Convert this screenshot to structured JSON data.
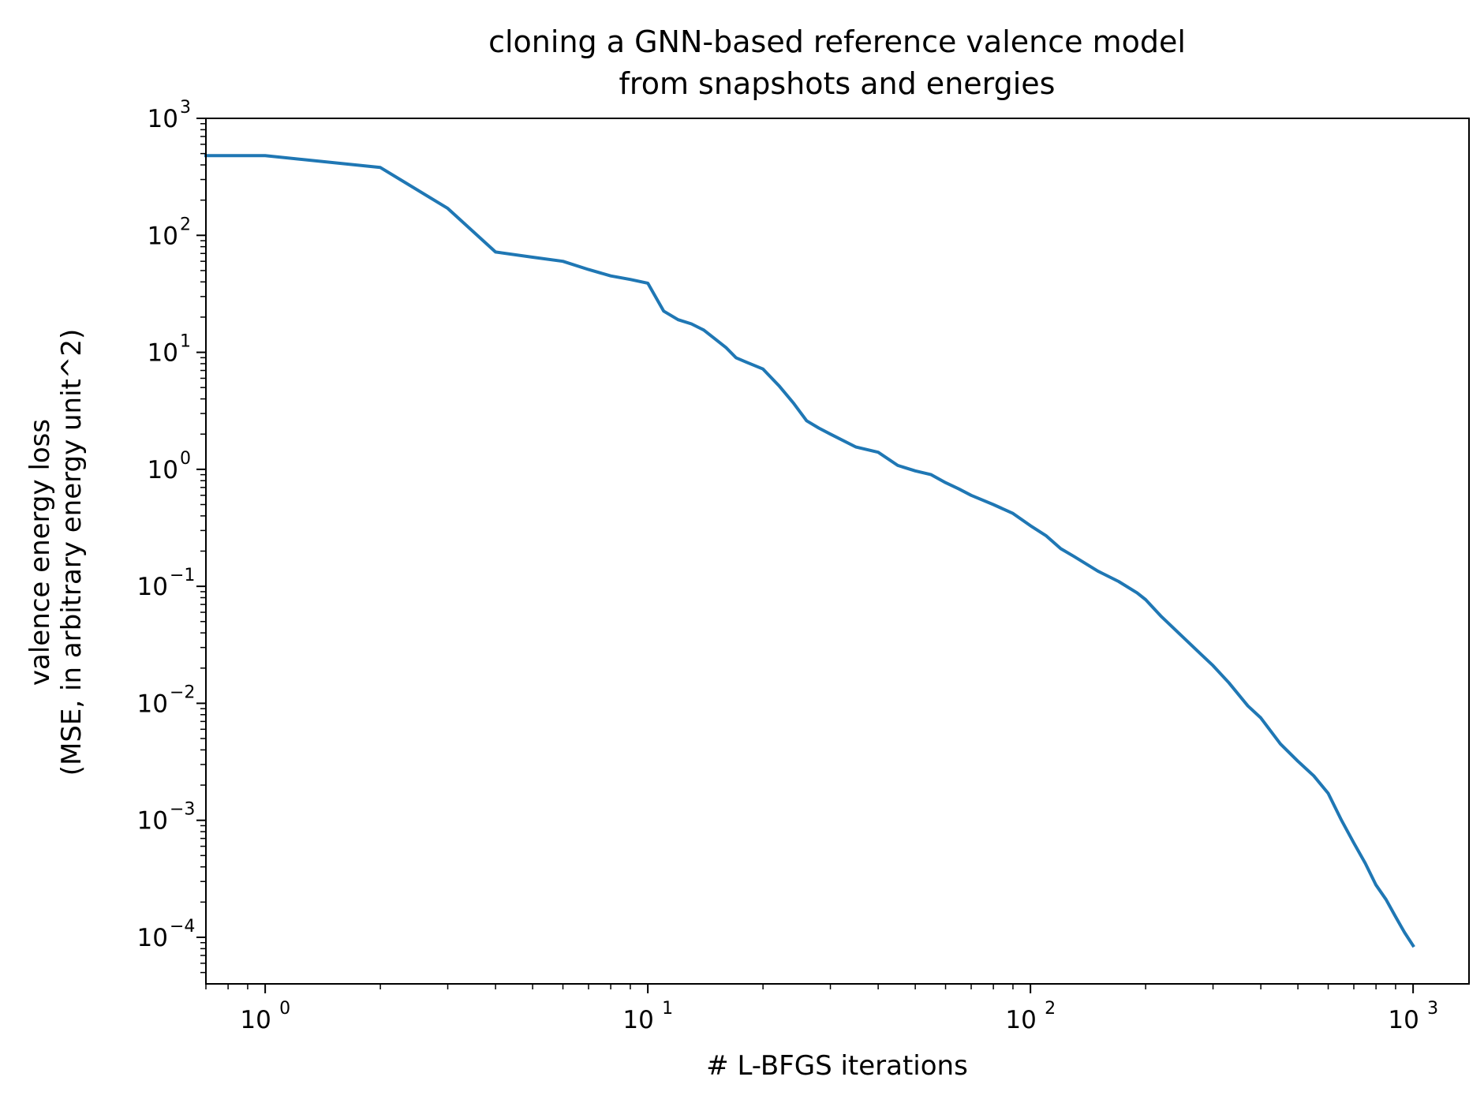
{
  "chart_data": {
    "type": "line",
    "title": [
      "cloning a GNN-based reference valence model",
      "from snapshots and energies"
    ],
    "xlabel": "# L-BFGS iterations",
    "ylabel": [
      "valence energy loss",
      "(MSE, in arbitrary energy unit^2)"
    ],
    "xscale": "log",
    "yscale": "log",
    "xlim": [
      0.7,
      1400
    ],
    "ylim": [
      4e-05,
      1000
    ],
    "grid": false,
    "x_ticks": [
      {
        "base": "10",
        "exp": "0",
        "value": 1
      },
      {
        "base": "10",
        "exp": "1",
        "value": 10
      },
      {
        "base": "10",
        "exp": "2",
        "value": 100
      },
      {
        "base": "10",
        "exp": "3",
        "value": 1000
      }
    ],
    "y_ticks": [
      {
        "base": "10",
        "exp": "3",
        "value": 1000
      },
      {
        "base": "10",
        "exp": "2",
        "value": 100
      },
      {
        "base": "10",
        "exp": "1",
        "value": 10
      },
      {
        "base": "10",
        "exp": "0",
        "value": 1
      },
      {
        "base": "10",
        "exp": "−1",
        "value": 0.1
      },
      {
        "base": "10",
        "exp": "−2",
        "value": 0.01
      },
      {
        "base": "10",
        "exp": "−3",
        "value": 0.001
      },
      {
        "base": "10",
        "exp": "−4",
        "value": 0.0001
      }
    ],
    "series": [
      {
        "color": "#1f77b4",
        "x": [
          0.7,
          1,
          2,
          3,
          4,
          5,
          6,
          7,
          8,
          9,
          10,
          11,
          12,
          13,
          14,
          15,
          16,
          17,
          18,
          20,
          22,
          24,
          26,
          28,
          30,
          35,
          40,
          45,
          50,
          55,
          60,
          65,
          70,
          80,
          90,
          100,
          110,
          120,
          130,
          150,
          170,
          190,
          200,
          220,
          250,
          280,
          300,
          330,
          370,
          400,
          450,
          500,
          550,
          600,
          650,
          700,
          750,
          800,
          850,
          900,
          950,
          1000
        ],
        "y": [
          480,
          480,
          380,
          170,
          72,
          65,
          60,
          51,
          45,
          42,
          39,
          22.5,
          19,
          17.5,
          15.5,
          13,
          11,
          9,
          8.3,
          7.2,
          5.2,
          3.7,
          2.6,
          2.25,
          2.0,
          1.55,
          1.4,
          1.08,
          0.97,
          0.9,
          0.77,
          0.68,
          0.6,
          0.5,
          0.42,
          0.33,
          0.27,
          0.21,
          0.18,
          0.135,
          0.11,
          0.088,
          0.077,
          0.055,
          0.037,
          0.026,
          0.021,
          0.015,
          0.0095,
          0.0075,
          0.0045,
          0.0032,
          0.0024,
          0.0017,
          0.001,
          0.00064,
          0.00043,
          0.00028,
          0.00021,
          0.00015,
          0.00011,
          8.5e-05
        ]
      }
    ]
  }
}
